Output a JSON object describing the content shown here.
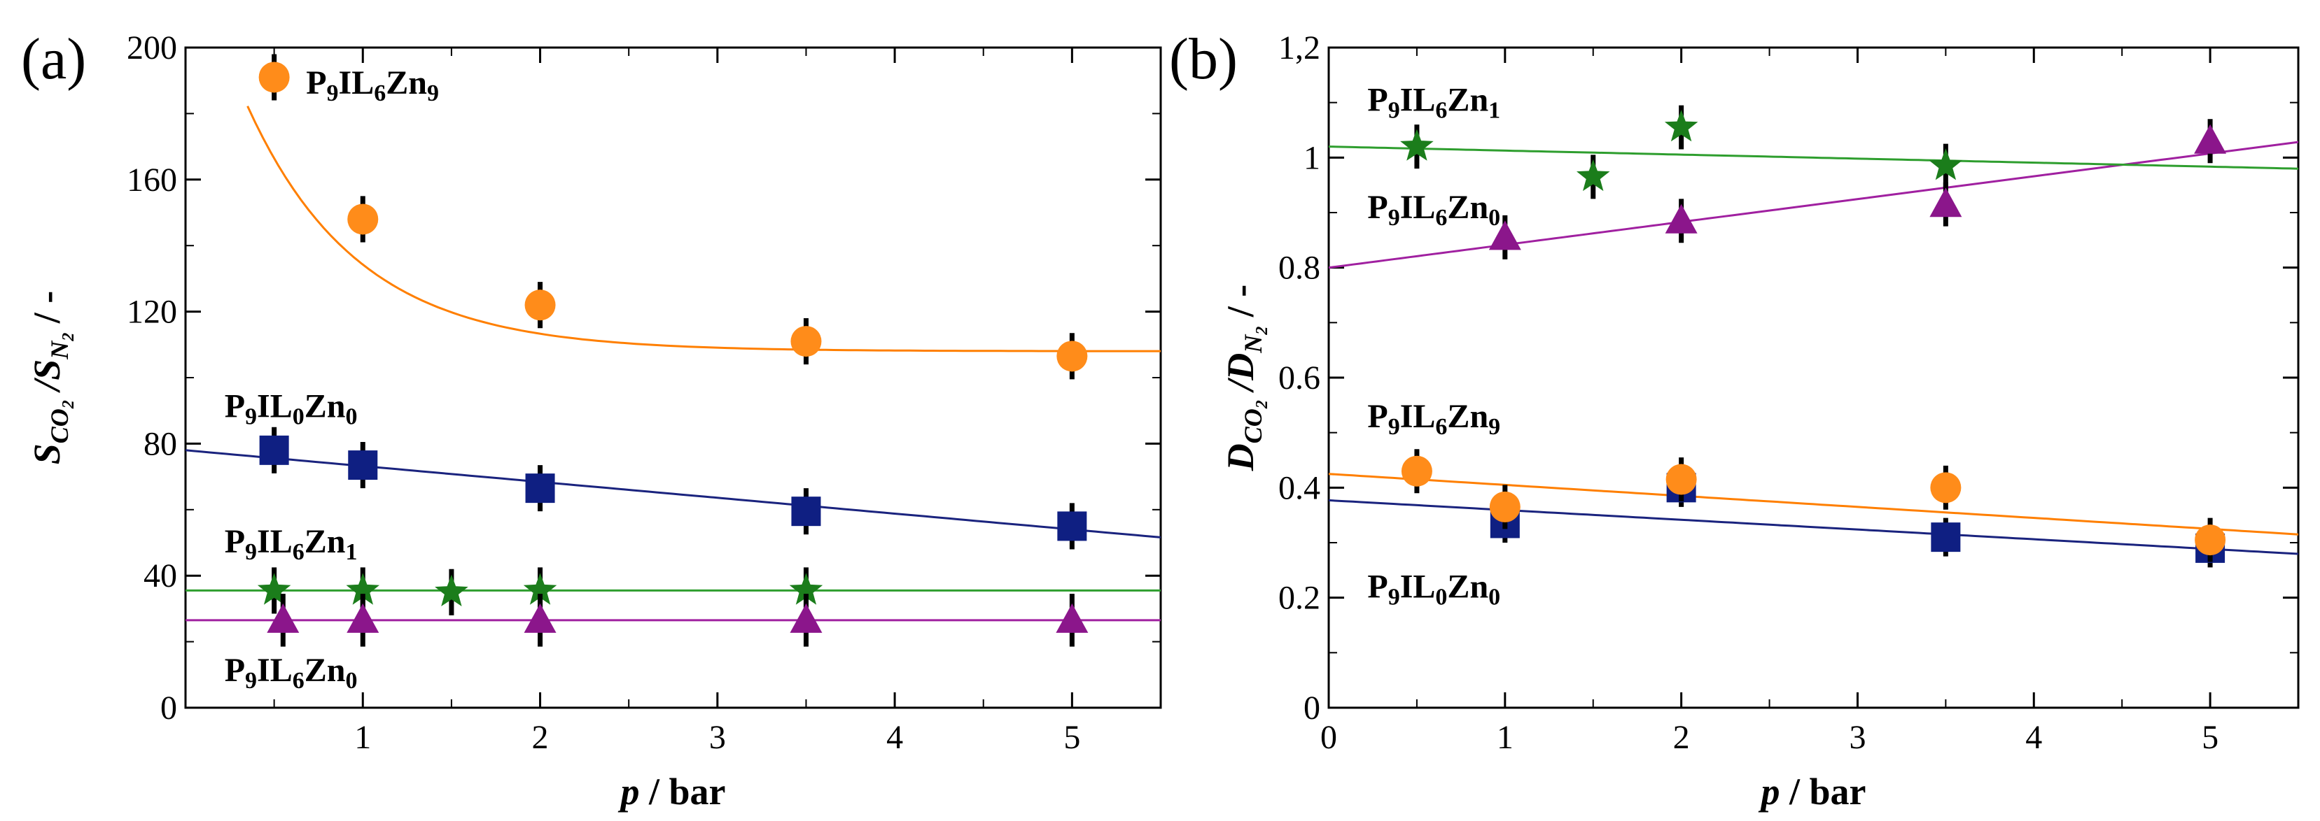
{
  "chart_data": [
    {
      "id": "a",
      "type": "scatter",
      "panel_label": "(a)",
      "xlabel_var": "p",
      "xlabel_unit": " / bar",
      "ylabel": {
        "main": "S",
        "sub1": "CO",
        "sub1b": "2",
        "mid": " /S",
        "sub2": "N",
        "sub2b": "2",
        "tail": " / -"
      },
      "xlim": [
        0,
        5.5
      ],
      "ylim": [
        0,
        200
      ],
      "xticks": [
        1,
        2,
        3,
        4,
        5
      ],
      "yticks": [
        0,
        40,
        80,
        120,
        160,
        200
      ],
      "ytick_labels": [
        "0",
        "40",
        "80",
        "120",
        "160",
        "200"
      ],
      "series": [
        {
          "name": "P9IL6Zn9",
          "color": "#ff8c1a",
          "line_color": "#ff7f00",
          "marker": "circle",
          "x": [
            0.5,
            1,
            2,
            3.5,
            5
          ],
          "y": [
            191,
            148,
            122,
            111,
            106.5
          ],
          "err": [
            7,
            7,
            7,
            7,
            7
          ],
          "fit": {
            "kind": "exp",
            "a": 108,
            "b": 130,
            "k": 1.6
          }
        },
        {
          "name": "P9IL0Zn0",
          "color": "#0f1f82",
          "line_color": "#1a237e",
          "marker": "square",
          "x": [
            0.5,
            1,
            2,
            3.5,
            5
          ],
          "y": [
            78,
            73.5,
            66.5,
            59.5,
            55
          ],
          "err": [
            7,
            7,
            7,
            7,
            7
          ],
          "fit": {
            "kind": "linear",
            "intercept": 78,
            "slope": -4.8
          }
        },
        {
          "name": "P9IL6Zn1",
          "color": "#1b7d1b",
          "line_color": "#2e9e2e",
          "marker": "star",
          "x": [
            0.5,
            1,
            1.5,
            2,
            3.5
          ],
          "y": [
            35.5,
            35.5,
            35,
            35.5,
            35.5
          ],
          "err": [
            7,
            7,
            7,
            7,
            7
          ],
          "fit": {
            "kind": "linear",
            "intercept": 35.5,
            "slope": 0
          }
        },
        {
          "name": "P9IL6Zn0",
          "color": "#8b168b",
          "line_color": "#a020a0",
          "marker": "triangle",
          "x": [
            0.55,
            1,
            2,
            3.5,
            5
          ],
          "y": [
            26.5,
            26.5,
            26.5,
            26.5,
            26.5
          ],
          "err": [
            8,
            8,
            8,
            8,
            8
          ],
          "fit": {
            "kind": "linear",
            "intercept": 26.5,
            "slope": 0
          }
        }
      ],
      "annotations": [
        {
          "base": "P",
          "s1": "9",
          "mid": "IL",
          "s2": "6",
          "mid2": "Zn",
          "s3": "9",
          "at": [
            0.68,
            186
          ]
        },
        {
          "base": "P",
          "s1": "9",
          "mid": "IL",
          "s2": "0",
          "mid2": "Zn",
          "s3": "0",
          "at": [
            0.22,
            88
          ]
        },
        {
          "base": "P",
          "s1": "9",
          "mid": "IL",
          "s2": "6",
          "mid2": "Zn",
          "s3": "1",
          "at": [
            0.22,
            47
          ]
        },
        {
          "base": "P",
          "s1": "9",
          "mid": "IL",
          "s2": "6",
          "mid2": "Zn",
          "s3": "0",
          "at": [
            0.22,
            8
          ]
        }
      ]
    },
    {
      "id": "b",
      "type": "scatter",
      "panel_label": "(b)",
      "xlabel_var": "p",
      "xlabel_unit": " / bar",
      "ylabel": {
        "main": "D",
        "sub1": "CO",
        "sub1b": "2",
        "mid": " /D",
        "sub2": "N",
        "sub2b": "2",
        "tail": " / -"
      },
      "xlim": [
        0,
        5.5
      ],
      "ylim": [
        0,
        1.2
      ],
      "xticks": [
        0,
        1,
        2,
        3,
        4,
        5
      ],
      "yticks": [
        0,
        0.2,
        0.4,
        0.6,
        0.8,
        1.0,
        1.2
      ],
      "ytick_labels": [
        "0",
        "0.2",
        "0.4",
        "0.6",
        "0.8",
        "1",
        "1,2"
      ],
      "series": [
        {
          "name": "P9IL0Zn0",
          "color": "#0f1f82",
          "line_color": "#1a237e",
          "marker": "square",
          "x": [
            1,
            2,
            3.5,
            5
          ],
          "y": [
            0.335,
            0.4,
            0.31,
            0.29
          ],
          "err": [
            0.035,
            0.035,
            0.035,
            0.035
          ],
          "fit": {
            "kind": "linear",
            "intercept": 0.377,
            "slope": -0.0177
          }
        },
        {
          "name": "P9IL6Zn9",
          "color": "#ff8c1a",
          "line_color": "#ff7f00",
          "marker": "circle",
          "x": [
            0.5,
            1,
            2,
            3.5,
            5
          ],
          "y": [
            0.43,
            0.365,
            0.415,
            0.4,
            0.305
          ],
          "err": [
            0.04,
            0.04,
            0.04,
            0.04,
            0.04
          ],
          "fit": {
            "kind": "linear",
            "intercept": 0.425,
            "slope": -0.02
          }
        },
        {
          "name": "P9IL6Zn0",
          "color": "#8b168b",
          "line_color": "#a020a0",
          "marker": "triangle",
          "x": [
            1,
            2,
            3.5,
            5
          ],
          "y": [
            0.855,
            0.885,
            0.915,
            1.03
          ],
          "err": [
            0.04,
            0.04,
            0.04,
            0.04
          ],
          "fit": {
            "kind": "linear",
            "intercept": 0.8,
            "slope": 0.0415
          }
        },
        {
          "name": "P9IL6Zn1",
          "color": "#1b7d1b",
          "line_color": "#2e9e2e",
          "marker": "star",
          "x": [
            0.5,
            1.5,
            2,
            3.5
          ],
          "y": [
            1.02,
            0.965,
            1.055,
            0.985
          ],
          "err": [
            0.04,
            0.04,
            0.04,
            0.04
          ],
          "fit": {
            "kind": "linear",
            "intercept": 1.02,
            "slope": -0.0073
          }
        }
      ],
      "annotations": [
        {
          "base": "P",
          "s1": "9",
          "mid": "IL",
          "s2": "6",
          "mid2": "Zn",
          "s3": "1",
          "at": [
            0.22,
            1.085
          ]
        },
        {
          "base": "P",
          "s1": "9",
          "mid": "IL",
          "s2": "6",
          "mid2": "Zn",
          "s3": "0",
          "at": [
            0.22,
            0.89
          ]
        },
        {
          "base": "P",
          "s1": "9",
          "mid": "IL",
          "s2": "6",
          "mid2": "Zn",
          "s3": "9",
          "at": [
            0.22,
            0.51
          ]
        },
        {
          "base": "P",
          "s1": "9",
          "mid": "IL",
          "s2": "0",
          "mid2": "Zn",
          "s3": "0",
          "at": [
            0.22,
            0.2
          ]
        }
      ]
    }
  ]
}
